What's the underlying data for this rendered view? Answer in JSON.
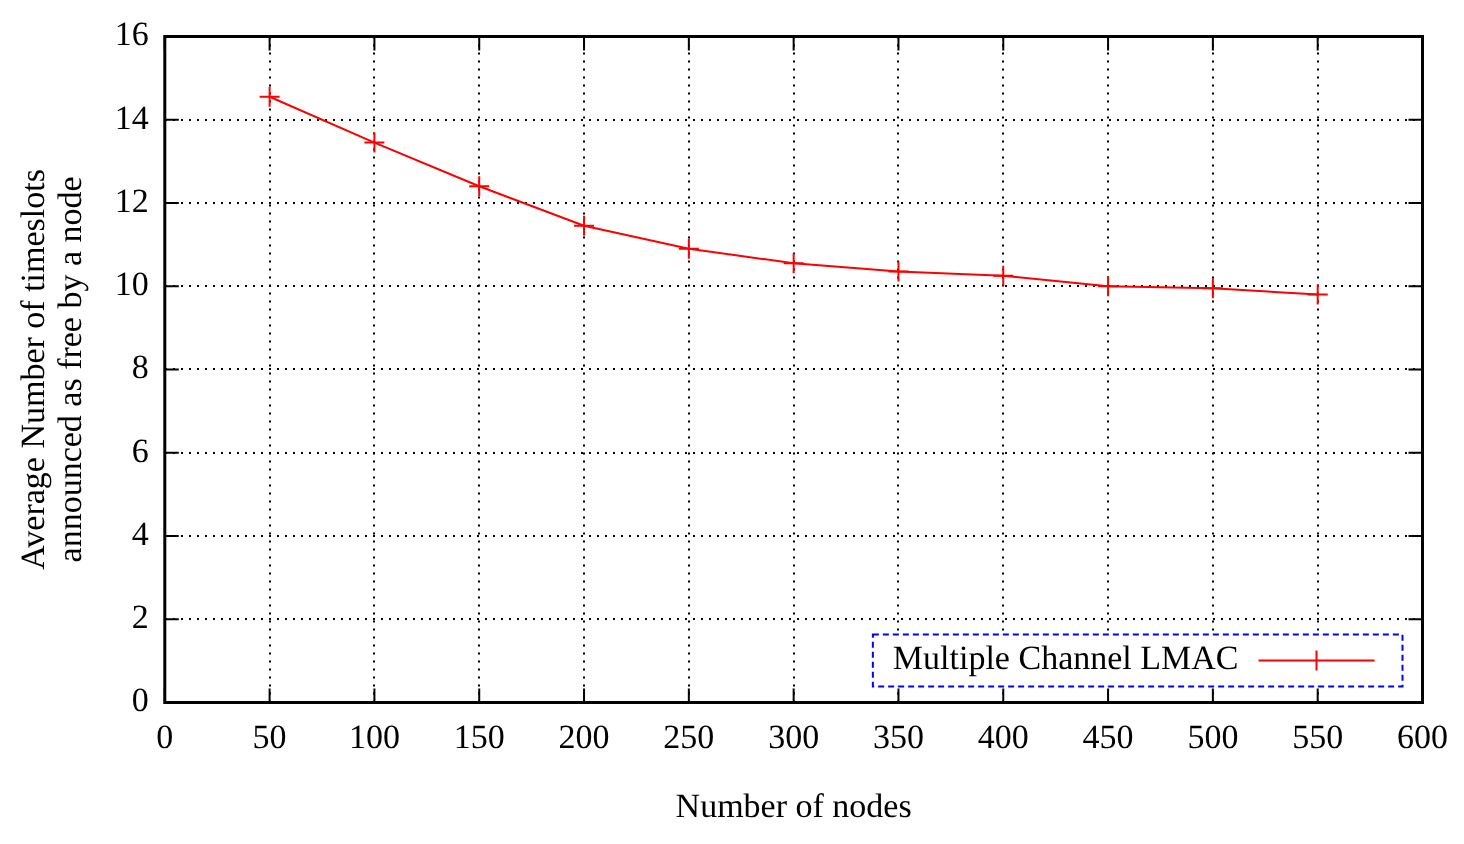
{
  "chart_data": {
    "type": "line",
    "xlabel": "Number of nodes",
    "ylabel": "Average Number of timeslots announced as free by a node",
    "x": [
      50,
      100,
      150,
      200,
      250,
      300,
      350,
      400,
      450,
      500,
      550
    ],
    "series": [
      {
        "name": "Multiple Channel LMAC",
        "color": "#ff0000",
        "values": [
          14.55,
          13.45,
          12.4,
          11.45,
          10.9,
          10.55,
          10.35,
          10.25,
          10.0,
          9.95,
          9.8
        ]
      }
    ],
    "xlim": [
      0,
      600
    ],
    "xticks": [
      0,
      50,
      100,
      150,
      200,
      250,
      300,
      350,
      400,
      450,
      500,
      550,
      600
    ],
    "ylim": [
      0,
      16
    ],
    "yticks": [
      0,
      2,
      4,
      6,
      8,
      10,
      12,
      14,
      16
    ],
    "grid": true,
    "legend": "bottom right",
    "marker": "cross",
    "line_style": "solid"
  }
}
